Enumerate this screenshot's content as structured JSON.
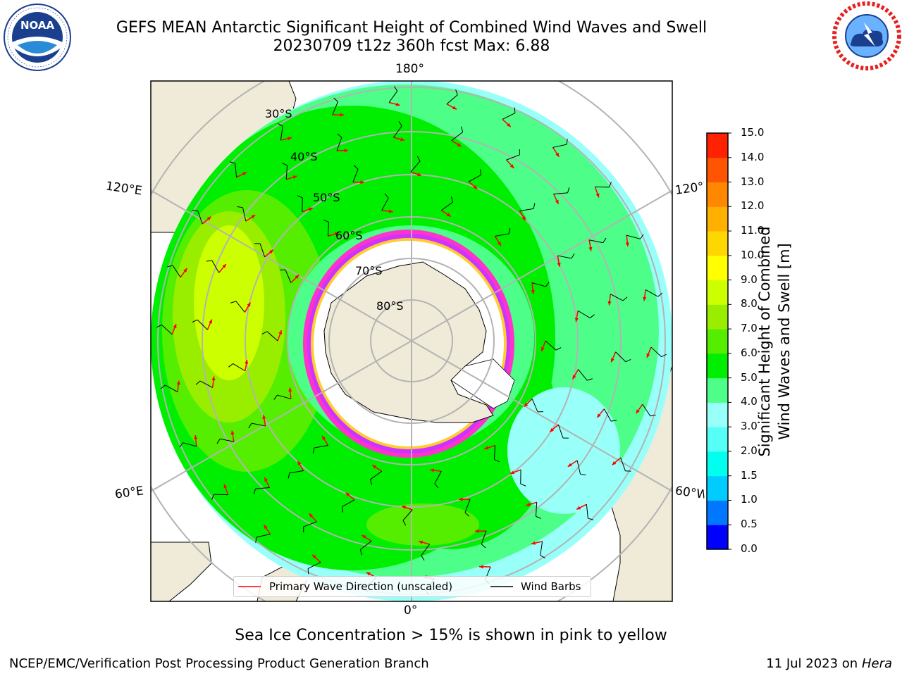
{
  "header": {
    "title_line1": "GEFS MEAN Antarctic Significant Height of Combined Wind Waves and Swell",
    "title_line2": "20230709 t12z 360h fcst   Max: 6.88"
  },
  "logos": {
    "noaa_text": "NOAA",
    "noaa_ring_text": "NATIONAL OCEANIC AND ATMOSPHERIC ADMINISTRATION · U.S. DEPARTMENT OF COMMERCE",
    "nws_ring_text": "NATIONAL WEATHER SERVICE"
  },
  "map": {
    "lon_labels": {
      "top": "180°",
      "bottom": "0°",
      "left_upper": "120°E",
      "left_lower": "60°E",
      "right_upper": "120°W",
      "right_lower": "60°W"
    },
    "lat_labels": [
      "30°S",
      "40°S",
      "50°S",
      "60°S",
      "70°S",
      "80°S"
    ],
    "colors": {
      "land": "#efebd8",
      "ice": "#ffffff",
      "ice_edge": [
        "#ff33cc",
        "#cc33ff",
        "#ffcc33"
      ],
      "arrows": "#ff0000",
      "barbs": "#000000",
      "grid": "#b3b3b3"
    }
  },
  "legend": {
    "wave_direction": "Primary Wave Direction (unscaled)",
    "wind_barbs": "Wind Barbs"
  },
  "colorbar": {
    "title_line1": "Significant Height of Combined",
    "title_line2": "Wind Waves and Swell [m]",
    "ticks": [
      "0.0",
      "0.5",
      "1.0",
      "1.5",
      "2.0",
      "3.0",
      "4.0",
      "5.0",
      "6.0",
      "7.0",
      "8.0",
      "9.0",
      "10.0",
      "11.0",
      "12.0",
      "13.0",
      "14.0",
      "15.0"
    ],
    "colors": [
      "#0000ff",
      "#0077ff",
      "#00ccff",
      "#00ffee",
      "#55fff5",
      "#99fff9",
      "#4dff88",
      "#00ee00",
      "#55ee00",
      "#99ee00",
      "#ccff00",
      "#ffff00",
      "#ffd700",
      "#ffb000",
      "#ff8800",
      "#ff5500",
      "#ff2200",
      "#ff0000"
    ]
  },
  "note": "Sea Ice Concentration > 15% is shown in pink to yellow",
  "footer": {
    "left": "NCEP/EMC/Verification Post Processing Product Generation Branch",
    "right_date": "11 Jul 2023 on ",
    "right_machine": "Hera"
  }
}
